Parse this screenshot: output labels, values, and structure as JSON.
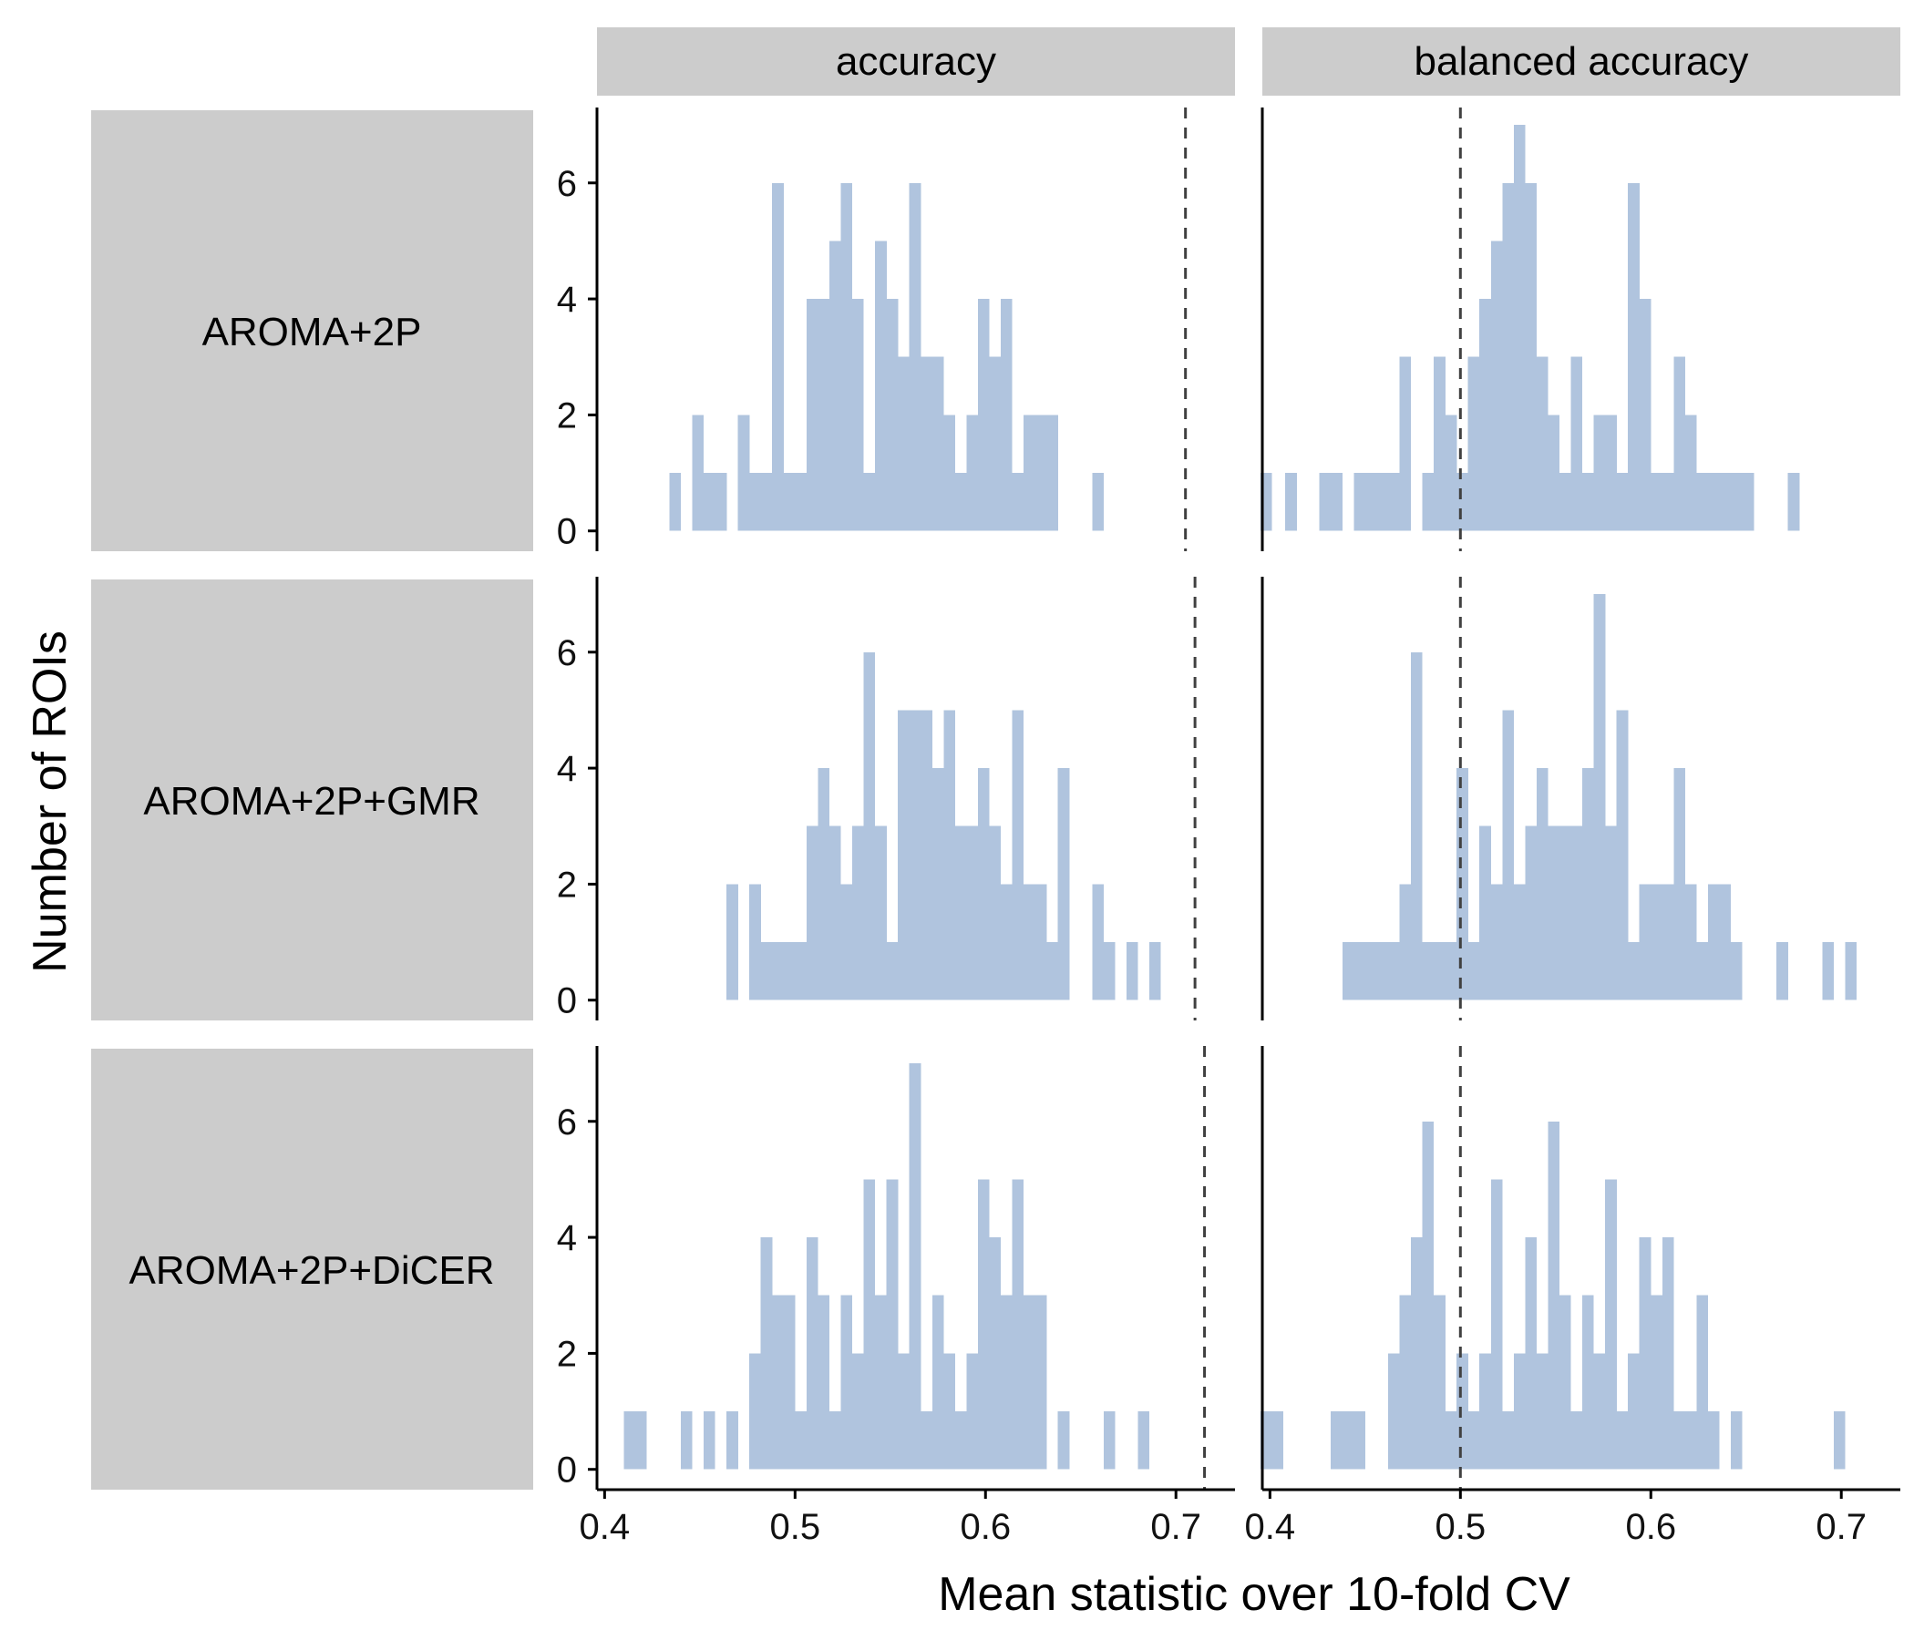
{
  "chart_data": {
    "type": "bar",
    "subtype": "faceted-histogram",
    "xlabel": "Mean statistic over 10-fold CV",
    "ylabel": "Number of ROIs",
    "x_ticks": [
      "0.4",
      "0.5",
      "0.6",
      "0.7"
    ],
    "x_tick_values": [
      0.4,
      0.5,
      0.6,
      0.7
    ],
    "y_ticks": [
      "0",
      "2",
      "4",
      "6"
    ],
    "y_tick_values": [
      0,
      2,
      4,
      6
    ],
    "xlim": [
      0.396,
      0.731
    ],
    "ylim": [
      -0.35,
      7.3
    ],
    "bin_width": 0.00608,
    "bar_color": "#b0c4de",
    "ref_line_color": "#404040",
    "strip_color": "#cccccc",
    "grid": false,
    "legend": "none",
    "columns": [
      "accuracy",
      "balanced accuracy"
    ],
    "rows": [
      "AROMA+2P",
      "AROMA+2P+GMR",
      "AROMA+2P+DiCER"
    ],
    "panels": [
      {
        "row": 0,
        "col": 0,
        "column": "accuracy",
        "row_label": "AROMA+2P",
        "ref_line": 0.705,
        "bins": [
          [
            0.434,
            1
          ],
          [
            0.446,
            2
          ],
          [
            0.452,
            1
          ],
          [
            0.458,
            1
          ],
          [
            0.47,
            2
          ],
          [
            0.476,
            1
          ],
          [
            0.482,
            1
          ],
          [
            0.488,
            6
          ],
          [
            0.494,
            1
          ],
          [
            0.5,
            1
          ],
          [
            0.506,
            4
          ],
          [
            0.512,
            4
          ],
          [
            0.518,
            5
          ],
          [
            0.524,
            6
          ],
          [
            0.53,
            4
          ],
          [
            0.536,
            1
          ],
          [
            0.542,
            5
          ],
          [
            0.548,
            4
          ],
          [
            0.554,
            3
          ],
          [
            0.56,
            6
          ],
          [
            0.566,
            3
          ],
          [
            0.572,
            3
          ],
          [
            0.578,
            2
          ],
          [
            0.584,
            1
          ],
          [
            0.59,
            2
          ],
          [
            0.596,
            4
          ],
          [
            0.602,
            3
          ],
          [
            0.608,
            4
          ],
          [
            0.614,
            1
          ],
          [
            0.62,
            2
          ],
          [
            0.626,
            2
          ],
          [
            0.632,
            2
          ],
          [
            0.656,
            1
          ]
        ]
      },
      {
        "row": 0,
        "col": 1,
        "column": "balanced accuracy",
        "row_label": "AROMA+2P",
        "ref_line": 0.5,
        "bins": [
          [
            0.395,
            1
          ],
          [
            0.408,
            1
          ],
          [
            0.426,
            1
          ],
          [
            0.432,
            1
          ],
          [
            0.444,
            1
          ],
          [
            0.45,
            1
          ],
          [
            0.456,
            1
          ],
          [
            0.462,
            1
          ],
          [
            0.468,
            3
          ],
          [
            0.48,
            1
          ],
          [
            0.486,
            3
          ],
          [
            0.492,
            2
          ],
          [
            0.498,
            1
          ],
          [
            0.504,
            3
          ],
          [
            0.51,
            4
          ],
          [
            0.516,
            5
          ],
          [
            0.522,
            6
          ],
          [
            0.528,
            7
          ],
          [
            0.534,
            6
          ],
          [
            0.54,
            3
          ],
          [
            0.546,
            2
          ],
          [
            0.552,
            1
          ],
          [
            0.558,
            3
          ],
          [
            0.564,
            1
          ],
          [
            0.57,
            2
          ],
          [
            0.576,
            2
          ],
          [
            0.582,
            1
          ],
          [
            0.588,
            6
          ],
          [
            0.594,
            4
          ],
          [
            0.6,
            1
          ],
          [
            0.606,
            1
          ],
          [
            0.612,
            3
          ],
          [
            0.618,
            2
          ],
          [
            0.624,
            1
          ],
          [
            0.63,
            1
          ],
          [
            0.636,
            1
          ],
          [
            0.642,
            1
          ],
          [
            0.648,
            1
          ],
          [
            0.672,
            1
          ]
        ]
      },
      {
        "row": 1,
        "col": 0,
        "column": "accuracy",
        "row_label": "AROMA+2P+GMR",
        "ref_line": 0.71,
        "bins": [
          [
            0.464,
            2
          ],
          [
            0.476,
            2
          ],
          [
            0.482,
            1
          ],
          [
            0.488,
            1
          ],
          [
            0.494,
            1
          ],
          [
            0.5,
            1
          ],
          [
            0.506,
            3
          ],
          [
            0.512,
            4
          ],
          [
            0.518,
            3
          ],
          [
            0.524,
            2
          ],
          [
            0.53,
            3
          ],
          [
            0.536,
            6
          ],
          [
            0.542,
            3
          ],
          [
            0.548,
            1
          ],
          [
            0.554,
            5
          ],
          [
            0.56,
            5
          ],
          [
            0.566,
            5
          ],
          [
            0.572,
            4
          ],
          [
            0.578,
            5
          ],
          [
            0.584,
            3
          ],
          [
            0.59,
            3
          ],
          [
            0.596,
            4
          ],
          [
            0.602,
            3
          ],
          [
            0.608,
            2
          ],
          [
            0.614,
            5
          ],
          [
            0.62,
            2
          ],
          [
            0.626,
            2
          ],
          [
            0.632,
            1
          ],
          [
            0.638,
            4
          ],
          [
            0.656,
            2
          ],
          [
            0.662,
            1
          ],
          [
            0.674,
            1
          ],
          [
            0.686,
            1
          ]
        ]
      },
      {
        "row": 1,
        "col": 1,
        "column": "balanced accuracy",
        "row_label": "AROMA+2P+GMR",
        "ref_line": 0.5,
        "bins": [
          [
            0.438,
            1
          ],
          [
            0.444,
            1
          ],
          [
            0.45,
            1
          ],
          [
            0.456,
            1
          ],
          [
            0.462,
            1
          ],
          [
            0.468,
            2
          ],
          [
            0.474,
            6
          ],
          [
            0.48,
            1
          ],
          [
            0.486,
            1
          ],
          [
            0.492,
            1
          ],
          [
            0.498,
            4
          ],
          [
            0.504,
            1
          ],
          [
            0.51,
            3
          ],
          [
            0.516,
            2
          ],
          [
            0.522,
            5
          ],
          [
            0.528,
            2
          ],
          [
            0.534,
            3
          ],
          [
            0.54,
            4
          ],
          [
            0.546,
            3
          ],
          [
            0.552,
            3
          ],
          [
            0.558,
            3
          ],
          [
            0.564,
            4
          ],
          [
            0.57,
            7
          ],
          [
            0.576,
            3
          ],
          [
            0.582,
            5
          ],
          [
            0.588,
            1
          ],
          [
            0.594,
            2
          ],
          [
            0.6,
            2
          ],
          [
            0.606,
            2
          ],
          [
            0.612,
            4
          ],
          [
            0.618,
            2
          ],
          [
            0.624,
            1
          ],
          [
            0.63,
            2
          ],
          [
            0.636,
            2
          ],
          [
            0.642,
            1
          ],
          [
            0.666,
            1
          ],
          [
            0.69,
            1
          ],
          [
            0.702,
            1
          ]
        ]
      },
      {
        "row": 2,
        "col": 0,
        "column": "accuracy",
        "row_label": "AROMA+2P+DiCER",
        "ref_line": 0.715,
        "bins": [
          [
            0.41,
            1
          ],
          [
            0.416,
            1
          ],
          [
            0.44,
            1
          ],
          [
            0.452,
            1
          ],
          [
            0.464,
            1
          ],
          [
            0.476,
            2
          ],
          [
            0.482,
            4
          ],
          [
            0.488,
            3
          ],
          [
            0.494,
            3
          ],
          [
            0.5,
            1
          ],
          [
            0.506,
            4
          ],
          [
            0.512,
            3
          ],
          [
            0.518,
            1
          ],
          [
            0.524,
            3
          ],
          [
            0.53,
            2
          ],
          [
            0.536,
            5
          ],
          [
            0.542,
            3
          ],
          [
            0.548,
            5
          ],
          [
            0.554,
            2
          ],
          [
            0.56,
            7
          ],
          [
            0.566,
            1
          ],
          [
            0.572,
            3
          ],
          [
            0.578,
            2
          ],
          [
            0.584,
            1
          ],
          [
            0.59,
            2
          ],
          [
            0.596,
            5
          ],
          [
            0.602,
            4
          ],
          [
            0.608,
            3
          ],
          [
            0.614,
            5
          ],
          [
            0.62,
            3
          ],
          [
            0.626,
            3
          ],
          [
            0.638,
            1
          ],
          [
            0.662,
            1
          ],
          [
            0.68,
            1
          ]
        ]
      },
      {
        "row": 2,
        "col": 1,
        "column": "balanced accuracy",
        "row_label": "AROMA+2P+DiCER",
        "ref_line": 0.5,
        "bins": [
          [
            0.395,
            1
          ],
          [
            0.401,
            1
          ],
          [
            0.432,
            1
          ],
          [
            0.438,
            1
          ],
          [
            0.444,
            1
          ],
          [
            0.462,
            2
          ],
          [
            0.468,
            3
          ],
          [
            0.474,
            4
          ],
          [
            0.48,
            6
          ],
          [
            0.486,
            3
          ],
          [
            0.492,
            1
          ],
          [
            0.498,
            2
          ],
          [
            0.504,
            1
          ],
          [
            0.51,
            2
          ],
          [
            0.516,
            5
          ],
          [
            0.522,
            1
          ],
          [
            0.528,
            2
          ],
          [
            0.534,
            4
          ],
          [
            0.54,
            2
          ],
          [
            0.546,
            6
          ],
          [
            0.552,
            3
          ],
          [
            0.558,
            1
          ],
          [
            0.564,
            3
          ],
          [
            0.57,
            2
          ],
          [
            0.576,
            5
          ],
          [
            0.582,
            1
          ],
          [
            0.588,
            2
          ],
          [
            0.594,
            4
          ],
          [
            0.6,
            3
          ],
          [
            0.606,
            4
          ],
          [
            0.612,
            1
          ],
          [
            0.618,
            1
          ],
          [
            0.624,
            3
          ],
          [
            0.63,
            1
          ],
          [
            0.642,
            1
          ],
          [
            0.696,
            1
          ]
        ]
      }
    ]
  }
}
